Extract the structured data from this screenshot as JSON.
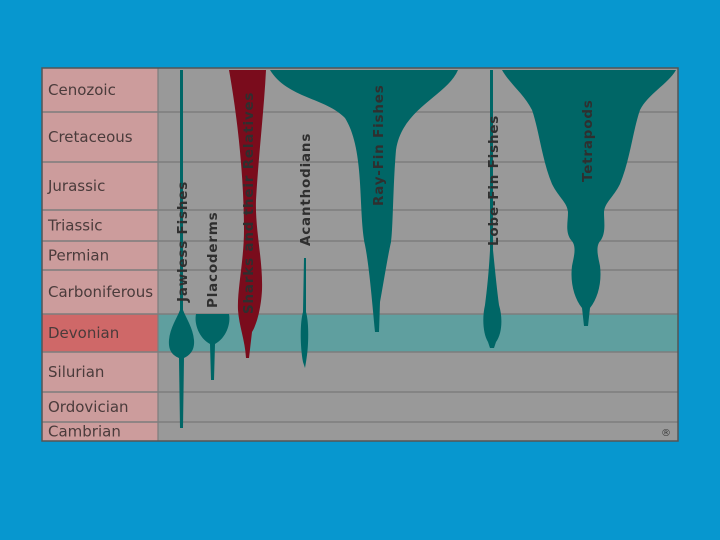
{
  "colors": {
    "background": "#0797cf",
    "panel": "#999999",
    "period_label_bg": "#cc9c9c",
    "devonian_label_bg": "#cf6868",
    "devonian_band": "#5f9f9f",
    "lineage_teal": "#006666",
    "sharks_red": "#7a0c1c"
  },
  "periods": [
    {
      "name": "Cenozoic",
      "highlight": false
    },
    {
      "name": "Cretaceous",
      "highlight": false
    },
    {
      "name": "Jurassic",
      "highlight": false
    },
    {
      "name": "Triassic",
      "highlight": false
    },
    {
      "name": "Permian",
      "highlight": false
    },
    {
      "name": "Carboniferous",
      "highlight": false
    },
    {
      "name": "Devonian",
      "highlight": true
    },
    {
      "name": "Silurian",
      "highlight": false
    },
    {
      "name": "Ordovician",
      "highlight": false
    },
    {
      "name": "Cambrian",
      "highlight": false
    }
  ],
  "groups": [
    {
      "name": "Jawless Fishes",
      "color": "teal"
    },
    {
      "name": "Placoderms",
      "color": "teal"
    },
    {
      "name": "Sharks and their Relatives",
      "color": "red"
    },
    {
      "name": "Acanthodians",
      "color": "teal"
    },
    {
      "name": "Ray-Fin Fishes",
      "color": "teal"
    },
    {
      "name": "Lobe-Fin Fishes",
      "color": "teal"
    },
    {
      "name": "Tetrapods",
      "color": "teal"
    }
  ],
  "copyright_mark": "®"
}
